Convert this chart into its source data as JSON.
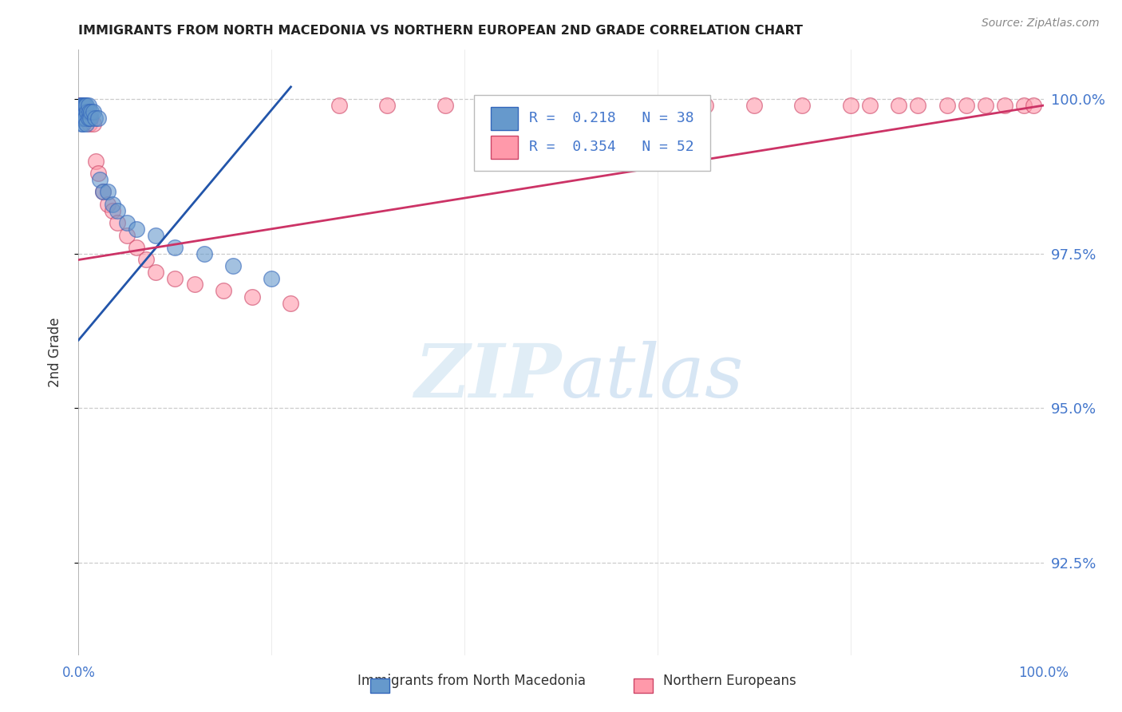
{
  "title": "IMMIGRANTS FROM NORTH MACEDONIA VS NORTHERN EUROPEAN 2ND GRADE CORRELATION CHART",
  "source": "Source: ZipAtlas.com",
  "ylabel": "2nd Grade",
  "ytick_labels": [
    "100.0%",
    "97.5%",
    "95.0%",
    "92.5%"
  ],
  "ytick_values": [
    1.0,
    0.975,
    0.95,
    0.925
  ],
  "xlim": [
    0.0,
    1.0
  ],
  "ylim": [
    0.91,
    1.008
  ],
  "legend_label1": "Immigrants from North Macedonia",
  "legend_label2": "Northern Europeans",
  "legend_R1": "R =  0.218",
  "legend_N1": "N = 38",
  "legend_R2": "R =  0.354",
  "legend_N2": "N = 52",
  "color1": "#6699CC",
  "color2": "#FF99AA",
  "edge1": "#3366BB",
  "edge2": "#CC4466",
  "trendline1_color": "#2255AA",
  "trendline2_color": "#CC3366",
  "background_color": "#FFFFFF",
  "watermark_zip": "ZIP",
  "watermark_atlas": "atlas",
  "blue_x": [
    0.001,
    0.002,
    0.002,
    0.003,
    0.003,
    0.003,
    0.004,
    0.004,
    0.005,
    0.005,
    0.005,
    0.006,
    0.006,
    0.007,
    0.007,
    0.008,
    0.008,
    0.009,
    0.01,
    0.01,
    0.011,
    0.012,
    0.013,
    0.015,
    0.017,
    0.02,
    0.022,
    0.025,
    0.03,
    0.035,
    0.04,
    0.05,
    0.06,
    0.08,
    0.1,
    0.13,
    0.16,
    0.2
  ],
  "blue_y": [
    0.998,
    0.999,
    0.997,
    0.999,
    0.998,
    0.996,
    0.999,
    0.997,
    0.999,
    0.998,
    0.996,
    0.999,
    0.997,
    0.999,
    0.997,
    0.999,
    0.996,
    0.998,
    0.999,
    0.997,
    0.998,
    0.997,
    0.998,
    0.998,
    0.997,
    0.997,
    0.987,
    0.985,
    0.985,
    0.983,
    0.982,
    0.98,
    0.979,
    0.978,
    0.976,
    0.975,
    0.973,
    0.971
  ],
  "pink_x": [
    0.001,
    0.002,
    0.003,
    0.003,
    0.004,
    0.004,
    0.005,
    0.005,
    0.006,
    0.006,
    0.007,
    0.008,
    0.009,
    0.01,
    0.011,
    0.012,
    0.015,
    0.018,
    0.02,
    0.025,
    0.03,
    0.035,
    0.04,
    0.05,
    0.06,
    0.07,
    0.08,
    0.1,
    0.12,
    0.15,
    0.18,
    0.22,
    0.27,
    0.32,
    0.38,
    0.43,
    0.5,
    0.55,
    0.6,
    0.65,
    0.7,
    0.75,
    0.8,
    0.82,
    0.85,
    0.87,
    0.9,
    0.92,
    0.94,
    0.96,
    0.98,
    0.99
  ],
  "pink_y": [
    0.999,
    0.999,
    0.999,
    0.998,
    0.999,
    0.997,
    0.999,
    0.997,
    0.999,
    0.997,
    0.998,
    0.998,
    0.997,
    0.997,
    0.996,
    0.997,
    0.996,
    0.99,
    0.988,
    0.985,
    0.983,
    0.982,
    0.98,
    0.978,
    0.976,
    0.974,
    0.972,
    0.971,
    0.97,
    0.969,
    0.968,
    0.967,
    0.999,
    0.999,
    0.999,
    0.999,
    0.999,
    0.999,
    0.999,
    0.999,
    0.999,
    0.999,
    0.999,
    0.999,
    0.999,
    0.999,
    0.999,
    0.999,
    0.999,
    0.999,
    0.999,
    0.999
  ],
  "blue_trend_x": [
    0.0,
    0.22
  ],
  "blue_trend_y": [
    0.961,
    1.002
  ],
  "pink_trend_x": [
    0.0,
    1.0
  ],
  "pink_trend_y": [
    0.974,
    0.999
  ]
}
